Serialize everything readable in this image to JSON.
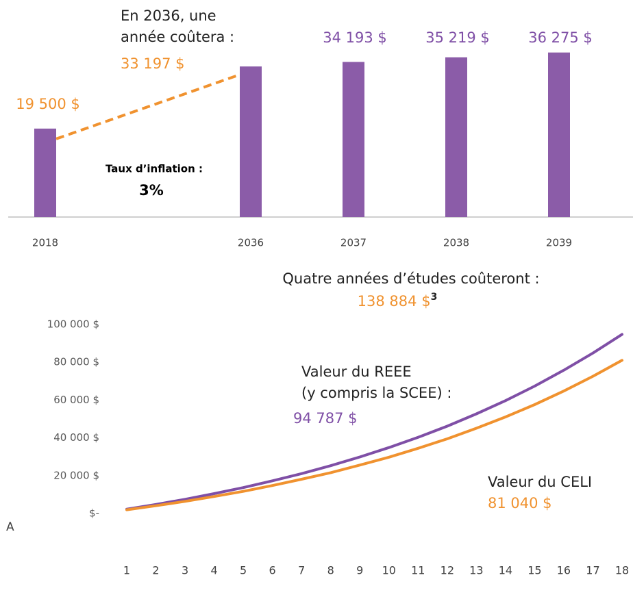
{
  "chart_data": [
    {
      "type": "bar",
      "categories": [
        "2018",
        null,
        "2036",
        "2037",
        "2038",
        "2039"
      ],
      "values": [
        19500,
        null,
        33197,
        34193,
        35219,
        36275
      ],
      "value_labels": [
        "19 500 $",
        null,
        "33 197 $",
        "34 193 $",
        "35 219 $",
        "36 275 $"
      ],
      "value_label_colors": [
        "#f0922f",
        null,
        "#f0922f",
        "#7f4fa6",
        "#7f4fa6",
        "#7f4fa6"
      ],
      "color": "#8b5ca8",
      "connector_color": "#f0922f",
      "ylim": [
        0,
        40000
      ],
      "annotations": [
        "En 2036, une\nannée coûtera :",
        "Taux d’inflation :",
        "3%"
      ]
    },
    {
      "type": "line",
      "title": "Quatre années d’études coûteront :",
      "title_value": "138 884 $",
      "title_note": "3",
      "x": [
        1,
        2,
        3,
        4,
        5,
        6,
        7,
        8,
        9,
        10,
        11,
        12,
        13,
        14,
        15,
        16,
        17,
        18
      ],
      "xlim": [
        1,
        18
      ],
      "xticks": [
        1,
        2,
        3,
        4,
        5,
        6,
        7,
        8,
        9,
        10,
        11,
        12,
        13,
        14,
        15,
        16,
        17,
        18
      ],
      "ylim": [
        0,
        100000
      ],
      "yticks": [
        {
          "value": 0,
          "label": "$-"
        },
        {
          "value": 20000,
          "label": "20 000 $"
        },
        {
          "value": 40000,
          "label": "40 000 $"
        },
        {
          "value": 60000,
          "label": "60 000 $"
        },
        {
          "value": 80000,
          "label": "80 000 $"
        },
        {
          "value": 100000,
          "label": "100 000 $"
        }
      ],
      "series": [
        {
          "name": "Valeur du REEE\n(y compris la SCEE) :",
          "color": "#7f4fa6",
          "values": [
            2300,
            4800,
            7500,
            10500,
            13700,
            17300,
            21100,
            25300,
            29900,
            34900,
            40300,
            46200,
            52700,
            59700,
            67400,
            75800,
            84900,
            94787
          ],
          "value_labels": [
            null,
            null,
            null,
            null,
            null,
            null,
            null,
            null,
            null,
            null,
            null,
            null,
            null,
            null,
            null,
            null,
            null,
            "94 787 $"
          ]
        },
        {
          "name": "Valeur du CELI",
          "color": "#f0922f",
          "values": [
            1970,
            4100,
            6400,
            9000,
            11700,
            14800,
            18100,
            21600,
            25600,
            29800,
            34500,
            39500,
            45100,
            51100,
            57600,
            64800,
            72600,
            81040
          ],
          "value_labels": [
            null,
            null,
            null,
            null,
            null,
            null,
            null,
            null,
            null,
            null,
            null,
            null,
            null,
            null,
            null,
            null,
            null,
            "81 040 $"
          ]
        }
      ],
      "annotations": [
        "A"
      ]
    }
  ]
}
